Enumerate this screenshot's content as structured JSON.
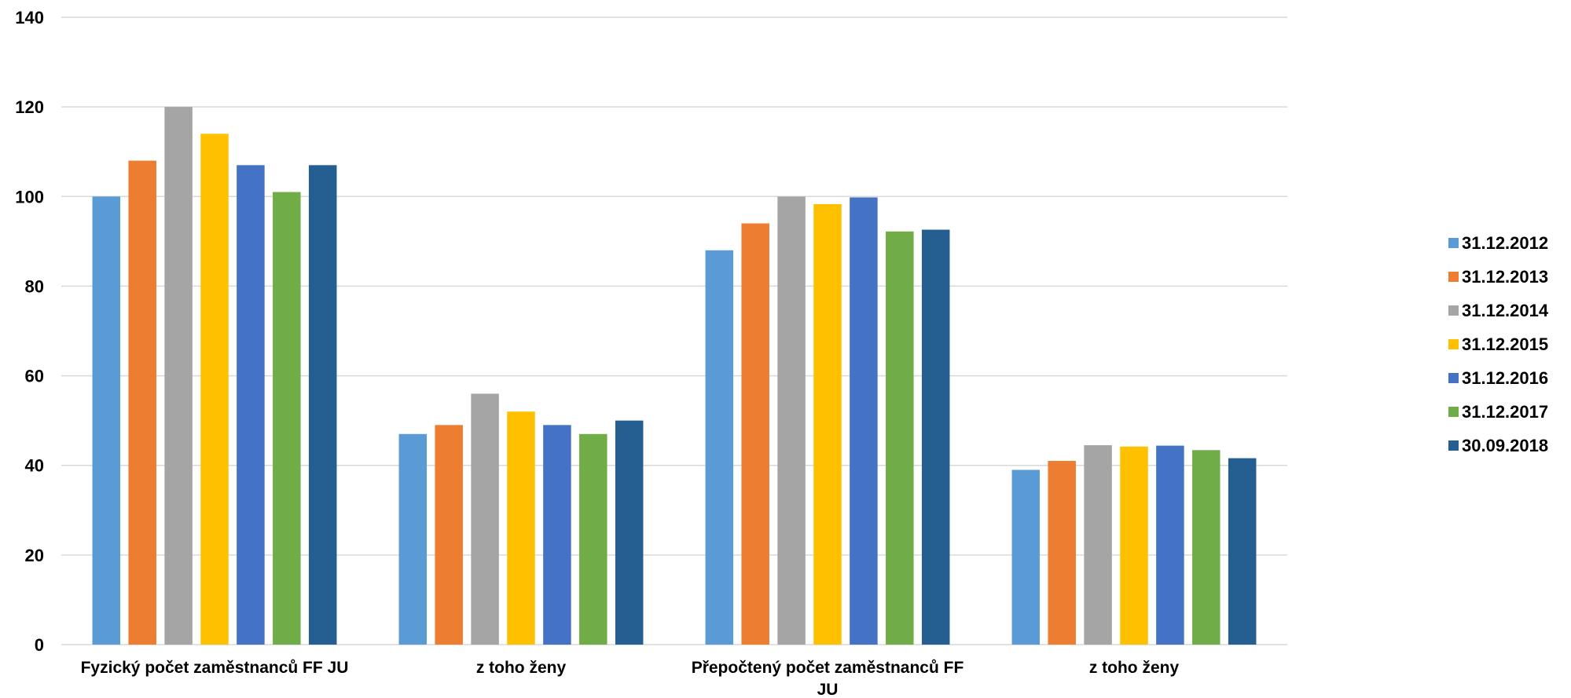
{
  "chart_data": {
    "type": "bar",
    "categories": [
      [
        "Fyzický počet zaměstnanců FF JU"
      ],
      [
        "z toho ženy"
      ],
      [
        "Přepočtený počet zaměstnanců FF",
        "JU"
      ],
      [
        "z toho ženy"
      ]
    ],
    "series": [
      {
        "name": "31.12.2012",
        "color": "#5b9bd5",
        "values": [
          100,
          47,
          88,
          39
        ]
      },
      {
        "name": "31.12.2013",
        "color": "#ed7d31",
        "values": [
          108,
          49,
          94,
          41
        ]
      },
      {
        "name": "31.12.2014",
        "color": "#a5a5a5",
        "values": [
          120,
          56,
          100,
          44.5
        ]
      },
      {
        "name": "31.12.2015",
        "color": "#ffc000",
        "values": [
          114,
          52,
          98.3,
          44.2
        ]
      },
      {
        "name": "31.12.2016",
        "color": "#4472c4",
        "values": [
          107,
          49,
          99.8,
          44.4
        ]
      },
      {
        "name": "31.12.2017",
        "color": "#70ad47",
        "values": [
          101,
          47,
          92.2,
          43.4
        ]
      },
      {
        "name": "30.09.2018",
        "color": "#255e91",
        "values": [
          107,
          50,
          92.6,
          41.6
        ]
      }
    ],
    "yticks": [
      "0",
      "20",
      "40",
      "60",
      "80",
      "100",
      "120",
      "140"
    ],
    "ylim": [
      0,
      140
    ],
    "grid": true,
    "legend_position": "right"
  }
}
